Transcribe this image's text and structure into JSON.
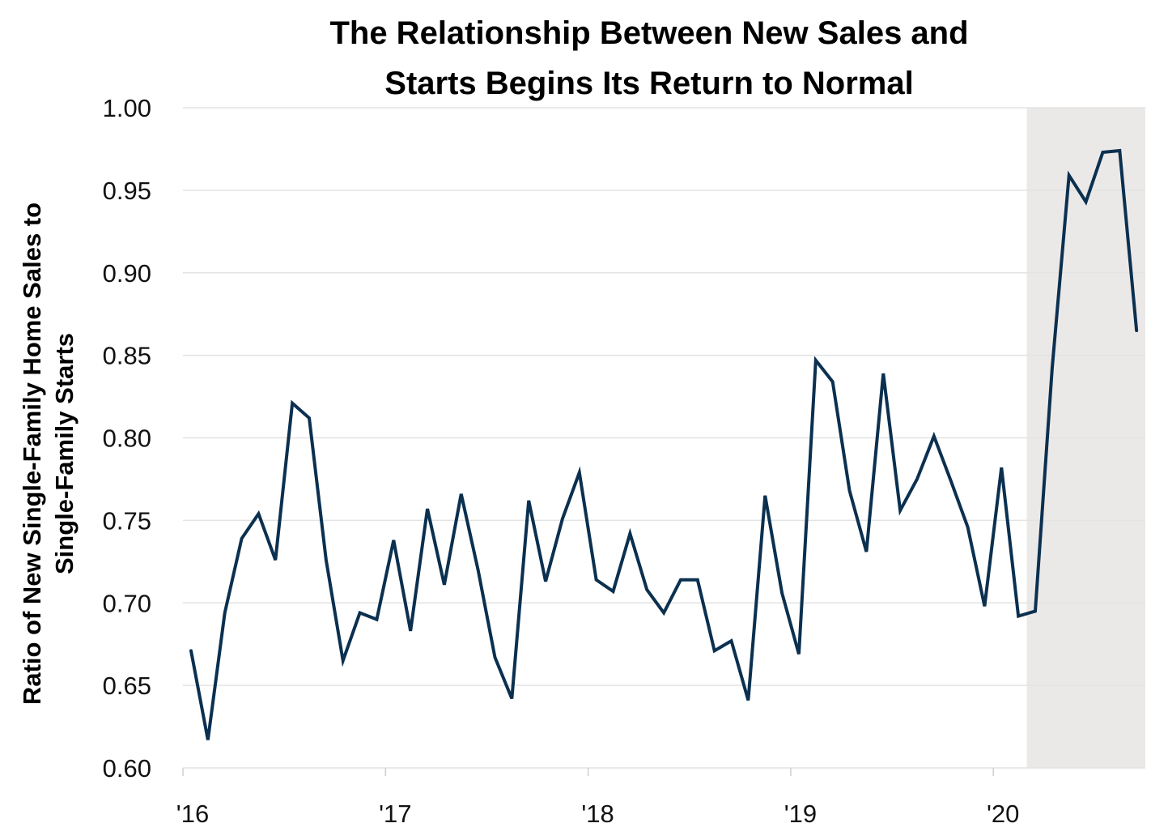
{
  "chart_data": {
    "type": "line",
    "title": "The Relationship Between New Sales and Starts Begins Its Return to Normal",
    "title_lines": [
      "The Relationship Between New Sales and",
      "Starts Begins Its Return to Normal"
    ],
    "xlabel": "",
    "ylabel": "Ratio of New Single-Family Home Sales to Single-Family Starts",
    "ylabel_lines": [
      "Ratio of New Single-Family Home Sales to",
      "Single-Family Starts"
    ],
    "ylim": [
      0.6,
      1.0
    ],
    "yticks": [
      "0.60",
      "0.65",
      "0.70",
      "0.75",
      "0.80",
      "0.85",
      "0.90",
      "0.95",
      "1.00"
    ],
    "xticks": [
      "'16",
      "'17",
      "'18",
      "'19",
      "'20"
    ],
    "x_start": "2016-01",
    "x_frequency": "monthly",
    "grid": "horizontal",
    "shaded_region": {
      "from": "2020-03",
      "to": "2020-09",
      "color": "#ebe9e8"
    },
    "line_color": "#0b3050",
    "series": [
      {
        "name": "Ratio",
        "values": [
          0.671,
          0.617,
          0.694,
          0.739,
          0.754,
          0.726,
          0.821,
          0.812,
          0.726,
          0.665,
          0.694,
          0.69,
          0.738,
          0.683,
          0.757,
          0.711,
          0.766,
          0.72,
          0.667,
          0.642,
          0.762,
          0.713,
          0.751,
          0.779,
          0.714,
          0.707,
          0.742,
          0.708,
          0.694,
          0.714,
          0.714,
          0.671,
          0.677,
          0.641,
          0.765,
          0.706,
          0.669,
          0.847,
          0.834,
          0.768,
          0.731,
          0.839,
          0.756,
          0.775,
          0.801,
          0.774,
          0.746,
          0.698,
          0.782,
          0.692,
          0.695,
          0.842,
          0.959,
          0.943,
          0.973,
          0.974,
          0.865
        ]
      }
    ]
  }
}
